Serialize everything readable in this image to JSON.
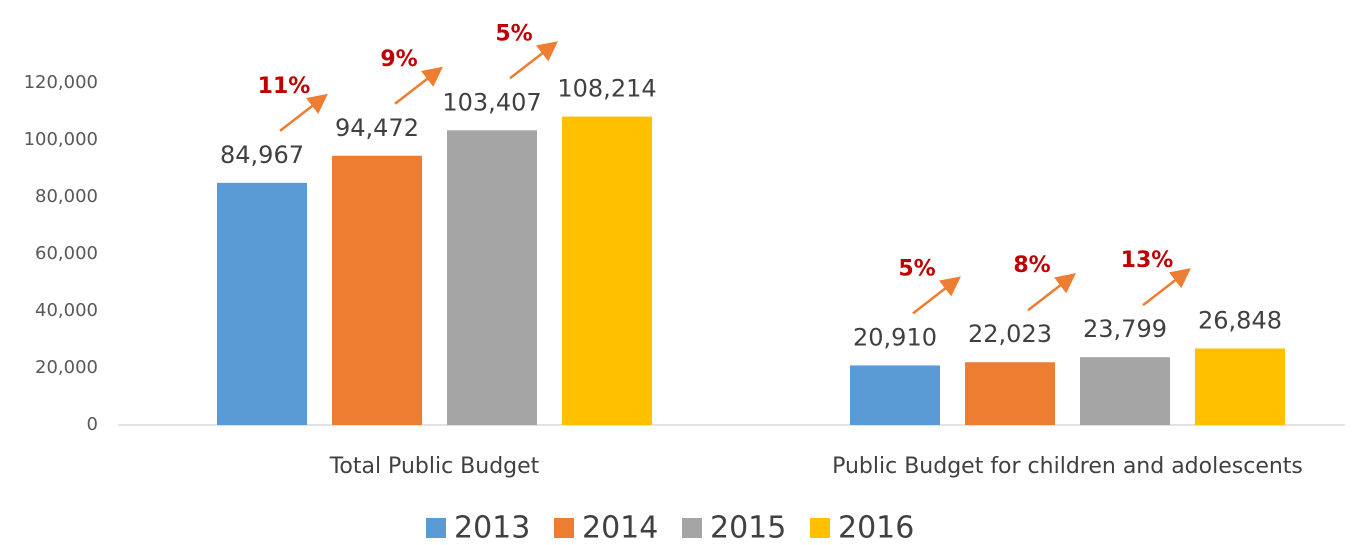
{
  "chart_data": {
    "type": "bar",
    "categories": [
      "Total Public Budget",
      "Public Budget for children and adolescents"
    ],
    "series": [
      {
        "name": "2013",
        "color": "#5b9bd5",
        "values": [
          84967,
          20910
        ],
        "value_labels": [
          "84,967",
          "20,910"
        ]
      },
      {
        "name": "2014",
        "color": "#ed7d31",
        "values": [
          94472,
          22023
        ],
        "value_labels": [
          "94,472",
          "22,023"
        ],
        "growth": [
          11,
          5
        ],
        "growth_labels": [
          "11%",
          "5%"
        ]
      },
      {
        "name": "2015",
        "color": "#a5a5a5",
        "values": [
          103407,
          23799
        ],
        "value_labels": [
          "103,407",
          "23,799"
        ],
        "growth": [
          9,
          8
        ],
        "growth_labels": [
          "9%",
          "8%"
        ]
      },
      {
        "name": "2016",
        "color": "#ffc000",
        "values": [
          108214,
          26848
        ],
        "value_labels": [
          "108,214",
          "26,848"
        ],
        "growth": [
          5,
          13
        ],
        "growth_labels": [
          "5%",
          "13%"
        ]
      }
    ],
    "ylim": [
      0,
      120000
    ],
    "yticks": [
      0,
      {
        "value": 20000,
        "label": "20,000"
      },
      {
        "value": 40000,
        "label": "40,000"
      },
      {
        "value": 60000,
        "label": "60,000"
      },
      {
        "value": 80000,
        "label": "80,000"
      },
      {
        "value": 100000,
        "label": "100,000"
      },
      {
        "value": 120000,
        "label": "120,000"
      }
    ],
    "grid": false,
    "legend": "bottom"
  }
}
